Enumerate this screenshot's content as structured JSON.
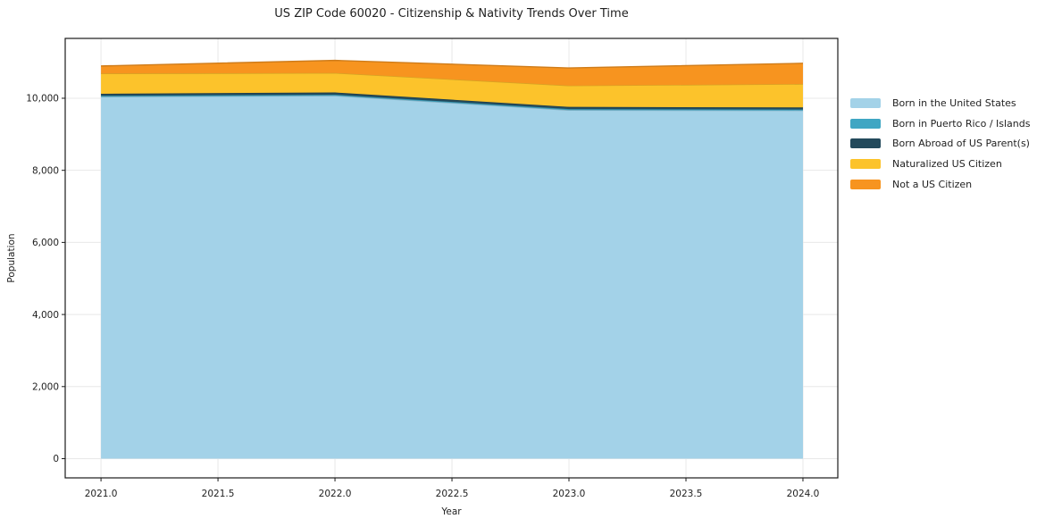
{
  "figure": {
    "title": "US ZIP Code 60020 - Citizenship & Nativity Trends Over Time",
    "xlabel": "Year",
    "ylabel": "Population"
  },
  "chart_data": {
    "type": "area",
    "stacked": true,
    "title": "US ZIP Code 60020 - Citizenship & Nativity Trends Over Time",
    "xlabel": "Year",
    "ylabel": "Population",
    "x": [
      2021,
      2022,
      2023,
      2024
    ],
    "series": [
      {
        "name": "Born in the United States",
        "color": "#A3D2E8",
        "values": [
          10040,
          10070,
          9670,
          9660
        ]
      },
      {
        "name": "Born in Puerto Rico / Islands",
        "color": "#3FA6C3",
        "values": [
          30,
          30,
          30,
          30
        ]
      },
      {
        "name": "Born Abroad of US Parent(s)",
        "color": "#234A5C",
        "values": [
          55,
          60,
          60,
          55
        ]
      },
      {
        "name": "Naturalized US Citizen",
        "color": "#FCC32B",
        "values": [
          560,
          540,
          590,
          650
        ]
      },
      {
        "name": "Not a US Citizen",
        "color": "#F7941F",
        "values": [
          210,
          350,
          490,
          575
        ]
      }
    ],
    "stack_totals": [
      10895,
      11050,
      10840,
      10970
    ],
    "xticks": {
      "values": [
        2021.0,
        2021.5,
        2022.0,
        2022.5,
        2023.0,
        2023.5,
        2024.0
      ],
      "labels": [
        "2021.0",
        "2021.5",
        "2022.0",
        "2022.5",
        "2023.0",
        "2023.5",
        "2024.0"
      ]
    },
    "yticks": {
      "values": [
        0,
        2000,
        4000,
        6000,
        8000,
        10000
      ],
      "labels": [
        "0",
        "2,000",
        "4,000",
        "6,000",
        "8,000",
        "10,000"
      ]
    },
    "xlim": [
      2020.847,
      2024.149
    ],
    "ylim": [
      -533,
      11660
    ],
    "grid": true,
    "legend_position": "right-outside"
  },
  "style": {
    "grid_color": "#e8e8e8",
    "spine_color": "#1a1a1a",
    "tick_color": "#1a1a1a",
    "text_color": "#1f1f1f",
    "background": "#ffffff"
  }
}
